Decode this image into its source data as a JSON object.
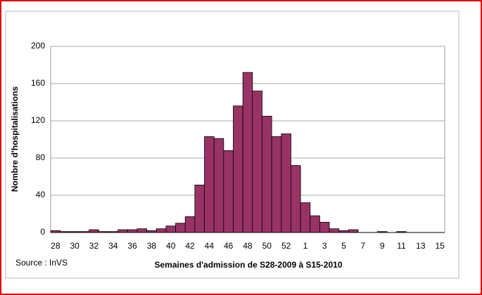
{
  "chart_data": {
    "type": "bar",
    "x_label": "Semaines d'admission de  S28-2009 à S15-2010",
    "y_label": "Nombre d'hospitalisations",
    "source": "Source : InVS",
    "categories": [
      "28",
      null,
      "30",
      null,
      "32",
      null,
      "34",
      null,
      "36",
      null,
      "38",
      null,
      "40",
      null,
      "42",
      null,
      "44",
      null,
      "46",
      null,
      "48",
      null,
      "50",
      null,
      "52",
      null,
      "1",
      null,
      "3",
      null,
      "5",
      null,
      "7",
      null,
      "9",
      null,
      "11",
      null,
      "13",
      null,
      "15"
    ],
    "values": [
      2,
      1,
      1,
      1,
      3,
      1,
      1,
      3,
      3,
      4,
      2,
      4,
      7,
      10,
      17,
      51,
      103,
      101,
      88,
      136,
      172,
      152,
      125,
      103,
      106,
      72,
      32,
      18,
      11,
      4,
      2,
      3,
      0,
      0,
      1,
      0,
      1,
      0,
      0,
      0,
      0
    ],
    "color": "#993366",
    "ylim": [
      0,
      200
    ],
    "yticks": [
      0,
      40,
      80,
      120,
      160,
      200
    ],
    "grid": true
  }
}
